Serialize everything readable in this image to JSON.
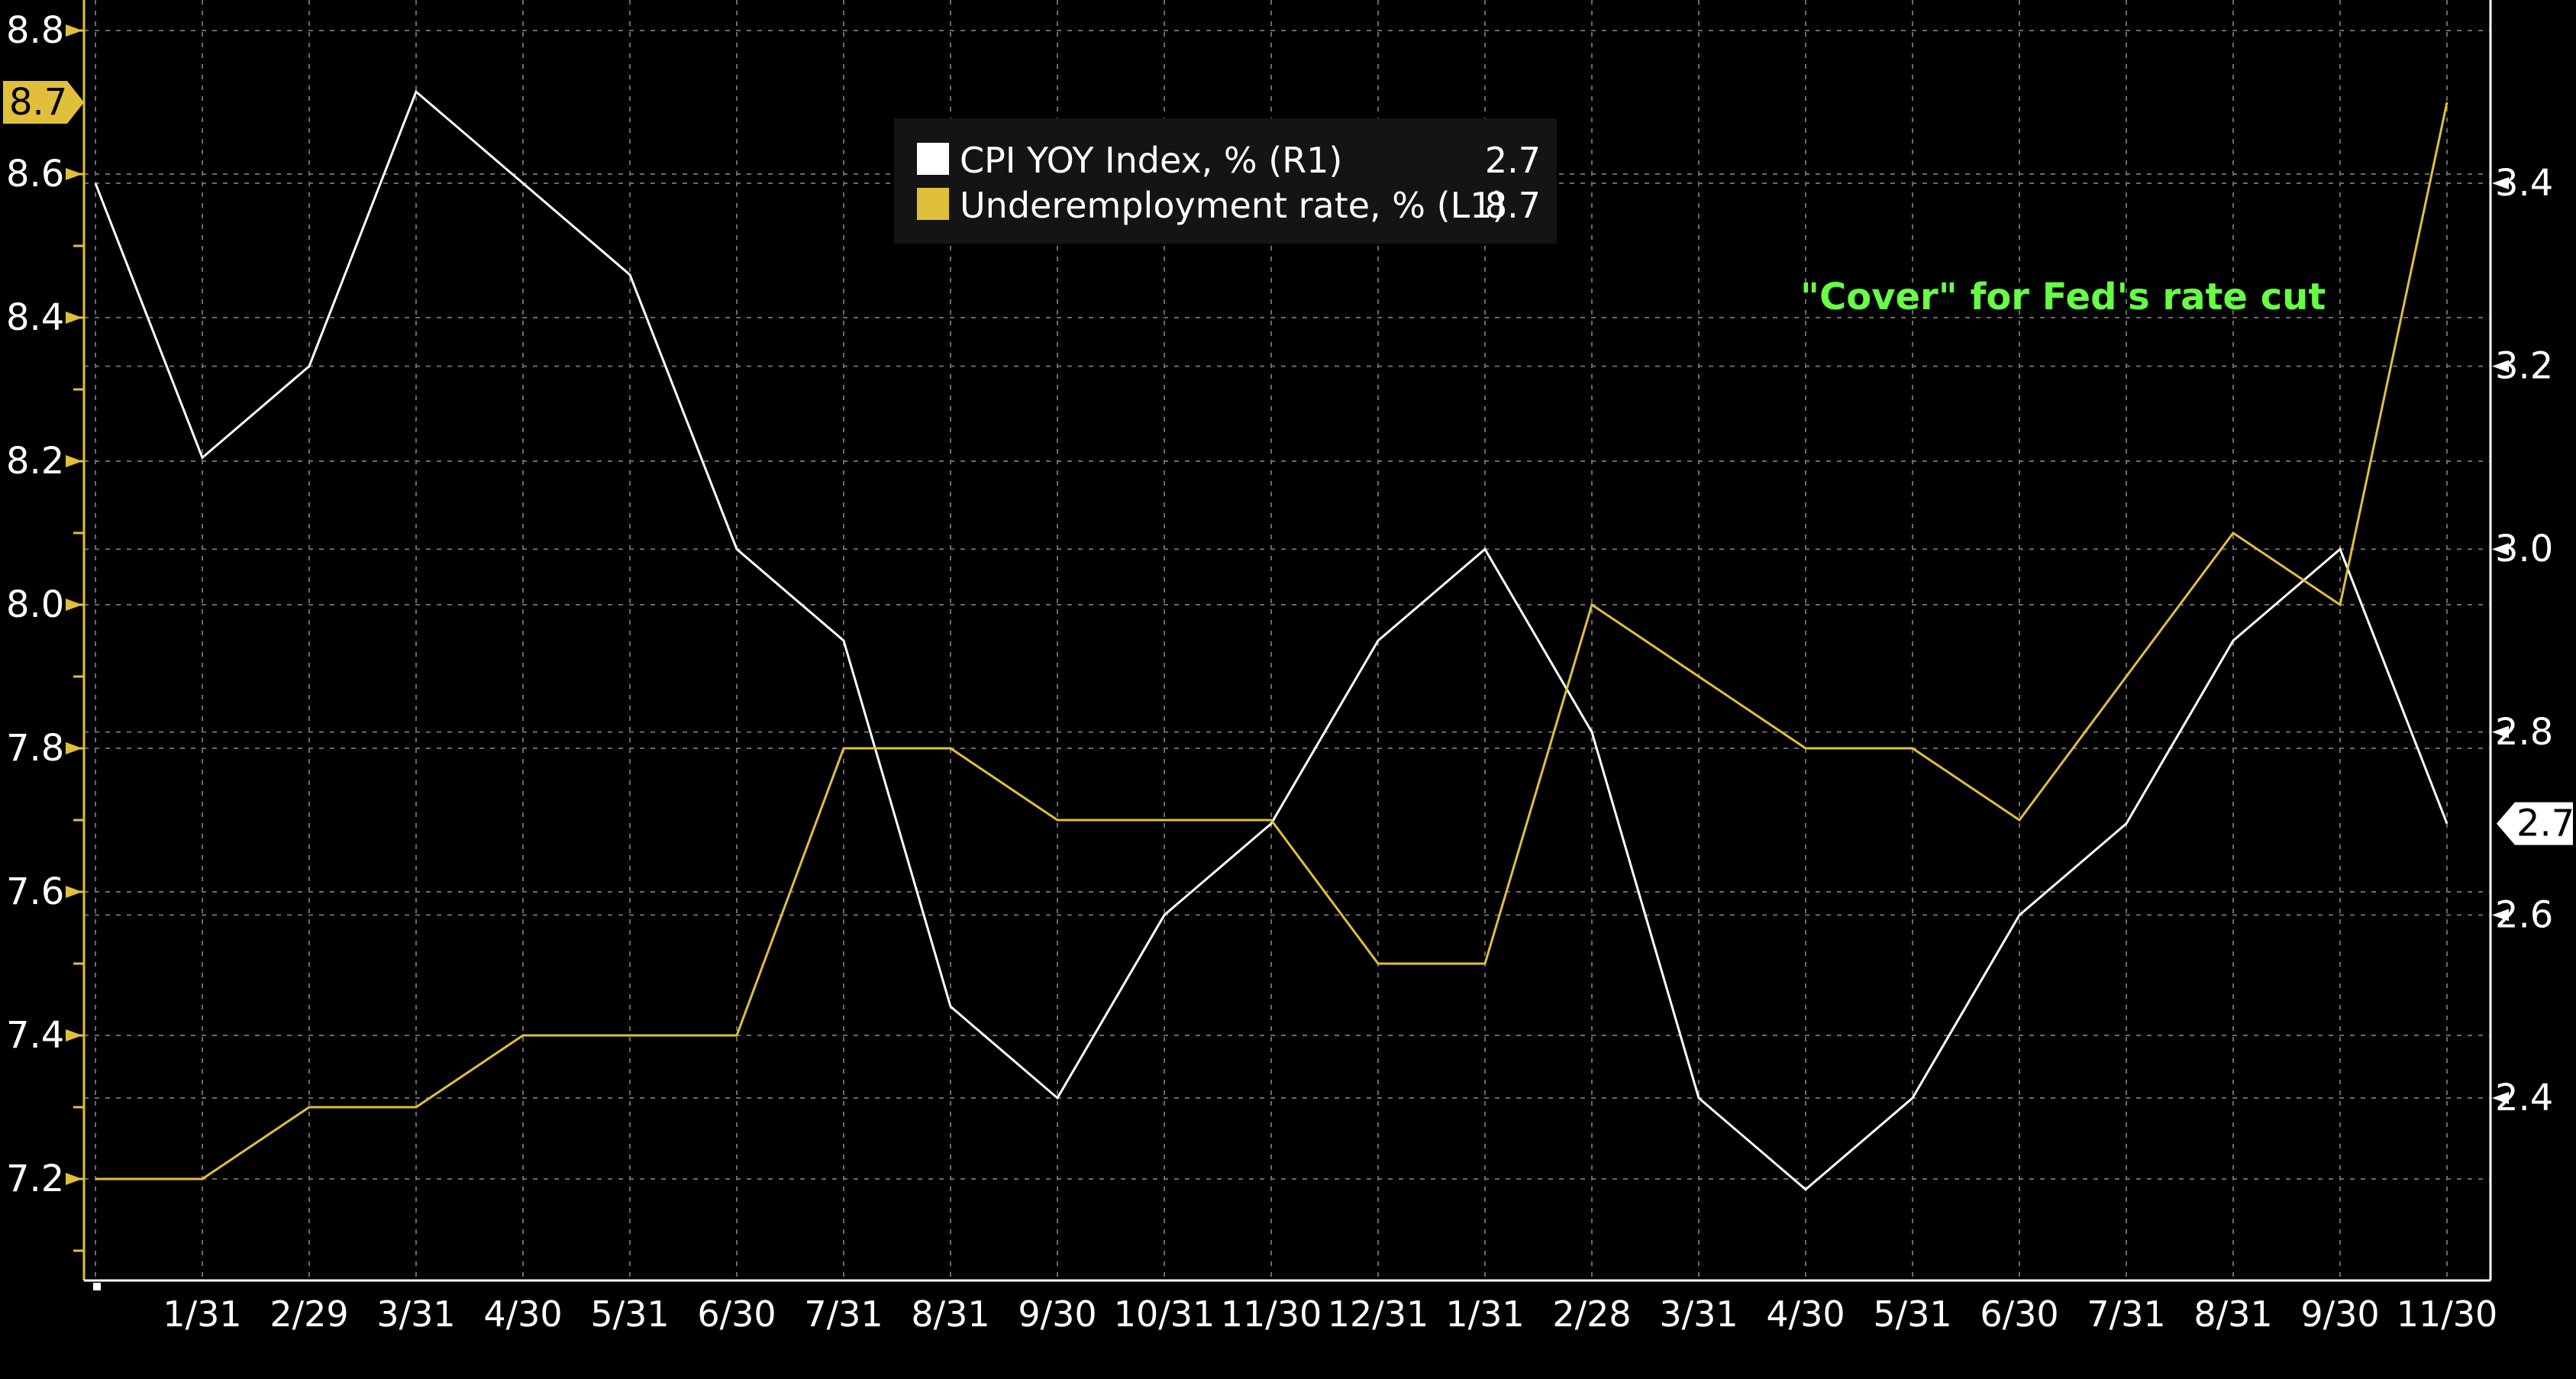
{
  "chart_data": {
    "type": "line",
    "categories": [
      "1/31",
      "2/29",
      "3/31",
      "4/30",
      "5/31",
      "6/30",
      "7/31",
      "8/31",
      "9/30",
      "10/31",
      "11/30",
      "12/31",
      "1/31",
      "2/28",
      "3/31",
      "4/30",
      "5/31",
      "6/30",
      "7/31",
      "8/31",
      "9/30",
      "11/30"
    ],
    "x_labels": [
      "1/31",
      "2/29",
      "3/31",
      "4/30",
      "5/31",
      "6/30",
      "7/31",
      "8/31",
      "9/30",
      "10/31",
      "11/30",
      "12/31",
      "1/31",
      "2/28",
      "3/31",
      "4/30",
      "5/31",
      "6/30",
      "7/31",
      "8/31",
      "9/30",
      "11/30"
    ],
    "series": [
      {
        "name": "CPI YOY Index, % (R1)",
        "axis": "right",
        "color": "#ffffff",
        "last_value": "2.7",
        "points": [
          {
            "t": -1,
            "v": 3.4
          },
          {
            "t": 0,
            "v": 3.1
          },
          {
            "t": 1,
            "v": 3.2
          },
          {
            "t": 2,
            "v": 3.5
          },
          {
            "t": 3,
            "v": 3.4
          },
          {
            "t": 4,
            "v": 3.3
          },
          {
            "t": 5,
            "v": 3.0
          },
          {
            "t": 6,
            "v": 2.9
          },
          {
            "t": 7,
            "v": 2.5
          },
          {
            "t": 8,
            "v": 2.4
          },
          {
            "t": 9,
            "v": 2.6
          },
          {
            "t": 10,
            "v": 2.7
          },
          {
            "t": 11,
            "v": 2.9
          },
          {
            "t": 12,
            "v": 3.0
          },
          {
            "t": 13,
            "v": 2.8
          },
          {
            "t": 14,
            "v": 2.4
          },
          {
            "t": 15,
            "v": 2.3
          },
          {
            "t": 16,
            "v": 2.4
          },
          {
            "t": 17,
            "v": 2.6
          },
          {
            "t": 18,
            "v": 2.7
          },
          {
            "t": 19,
            "v": 2.9
          },
          {
            "t": 20,
            "v": 3.0
          },
          {
            "t": 21,
            "v": 2.7
          }
        ]
      },
      {
        "name": "Underemployment rate, % (L1)",
        "axis": "left",
        "color": "#e0c03a",
        "last_value": "8.7",
        "points": [
          {
            "t": -1,
            "v": 7.2
          },
          {
            "t": 0,
            "v": 7.2
          },
          {
            "t": 1,
            "v": 7.3
          },
          {
            "t": 2,
            "v": 7.3
          },
          {
            "t": 3,
            "v": 7.4
          },
          {
            "t": 4,
            "v": 7.4
          },
          {
            "t": 5,
            "v": 7.4
          },
          {
            "t": 6,
            "v": 7.8
          },
          {
            "t": 7,
            "v": 7.8
          },
          {
            "t": 8,
            "v": 7.7
          },
          {
            "t": 9,
            "v": 7.7
          },
          {
            "t": 10,
            "v": 7.7
          },
          {
            "t": 11,
            "v": 7.5
          },
          {
            "t": 12,
            "v": 7.5
          },
          {
            "t": 13,
            "v": 8.0
          },
          {
            "t": 14,
            "v": 7.9
          },
          {
            "t": 15,
            "v": 7.8
          },
          {
            "t": 16,
            "v": 7.8
          },
          {
            "t": 17,
            "v": 7.7
          },
          {
            "t": 18,
            "v": 7.9
          },
          {
            "t": 19,
            "v": 8.1
          },
          {
            "t": 20,
            "v": 8.0
          },
          {
            "t": 21,
            "v": 8.7
          }
        ]
      }
    ],
    "left_axis": {
      "ticks": [
        7.2,
        7.4,
        7.6,
        7.8,
        8.0,
        8.2,
        8.4,
        8.6,
        8.8
      ],
      "labels": [
        "7.2",
        "7.4",
        "7.6",
        "7.8",
        "8.0",
        "8.2",
        "8.4",
        "8.6",
        "8.8"
      ],
      "minor_step": 0.1,
      "last_value_label": "8.7"
    },
    "right_axis": {
      "ticks": [
        2.4,
        2.6,
        2.8,
        3.0,
        3.2,
        3.4
      ],
      "labels": [
        "2.4",
        "2.6",
        "2.8",
        "3.0",
        "3.2",
        "3.4"
      ],
      "last_value_label": "2.7"
    },
    "legend": {
      "placement": "top-center",
      "entries": [
        {
          "label": "CPI YOY Index, % (R1)",
          "value": "2.7",
          "color": "#ffffff"
        },
        {
          "label": "Underemployment rate, % (L1)",
          "value": "8.7",
          "color": "#e0c03a"
        }
      ]
    },
    "annotation": "\"Cover\" for Fed's rate cut",
    "annotation_color": "#66ff44",
    "grid": true,
    "colors": {
      "background": "#000000",
      "cpi": "#ffffff",
      "underemployment": "#e0c03a",
      "grid": "#6a6a6a",
      "axis_left": "#e0c03a",
      "axis_right": "#ffffff"
    }
  }
}
